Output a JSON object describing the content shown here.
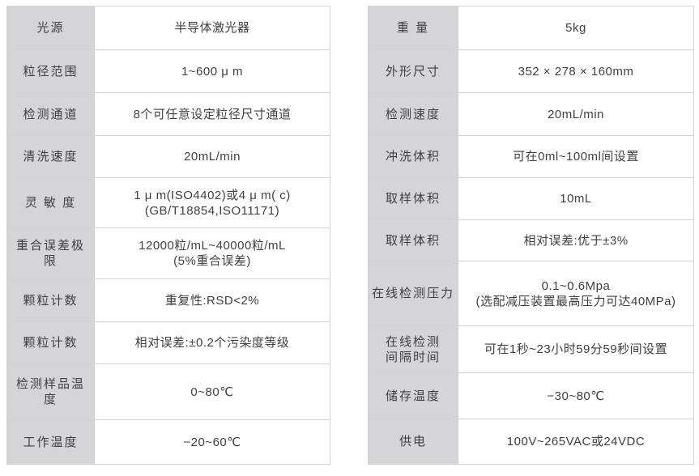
{
  "left_table": {
    "rows": [
      {
        "label": "光源",
        "value": "半导体激光器"
      },
      {
        "label": "粒径范围",
        "value": "1~600 μ m"
      },
      {
        "label": "检测通道",
        "value": "8个可任意设定粒径尺寸通道"
      },
      {
        "label": "清洗速度",
        "value": "20mL/min"
      },
      {
        "label": "灵 敏 度",
        "value_lines": [
          "1 μ m(ISO4402)或4 μ m( c)",
          "(GB/T18854,ISO11171)"
        ]
      },
      {
        "label": "重合误差极限",
        "value_lines": [
          "12000粒/mL~40000粒/mL",
          "(5%重合误差)"
        ]
      },
      {
        "label": "颗粒计数",
        "value": "重复性:RSD<2%"
      },
      {
        "label": "颗粒计数",
        "value": "相对误差:±0.2个污染度等级"
      },
      {
        "label": "检测样品温度",
        "value": "0~80℃"
      },
      {
        "label": "工作温度",
        "value": "−20~60℃"
      }
    ]
  },
  "right_table": {
    "rows": [
      {
        "label": "重 量",
        "value": "5kg"
      },
      {
        "label": "外形尺寸",
        "value": "352 × 278 × 160mm"
      },
      {
        "label": "检测速度",
        "value": "20mL/min"
      },
      {
        "label": "冲洗体积",
        "value": "可在0ml~100ml间设置"
      },
      {
        "label": "取样体积",
        "value": "10mL"
      },
      {
        "label": "取样体积",
        "value": "相对误差:优于±3%"
      },
      {
        "label": "在线检测压力",
        "value_lines": [
          "0.1~0.6Mpa",
          "(选配减压装置最高压力可达40MPa)"
        ]
      },
      {
        "label_lines": [
          "在线检测",
          "间隔时间"
        ],
        "value": "可在1秒~23小时59分59秒间设置"
      },
      {
        "label": "储存温度",
        "value": "−30~80℃"
      },
      {
        "label": "供电",
        "value": "100V~265VAC或24VDC"
      }
    ]
  },
  "colors": {
    "label_cell_bg": "#d5d5d7",
    "value_cell_bg": "#ffffff",
    "border": "#d2d2d4",
    "text": "#3f3f41"
  }
}
